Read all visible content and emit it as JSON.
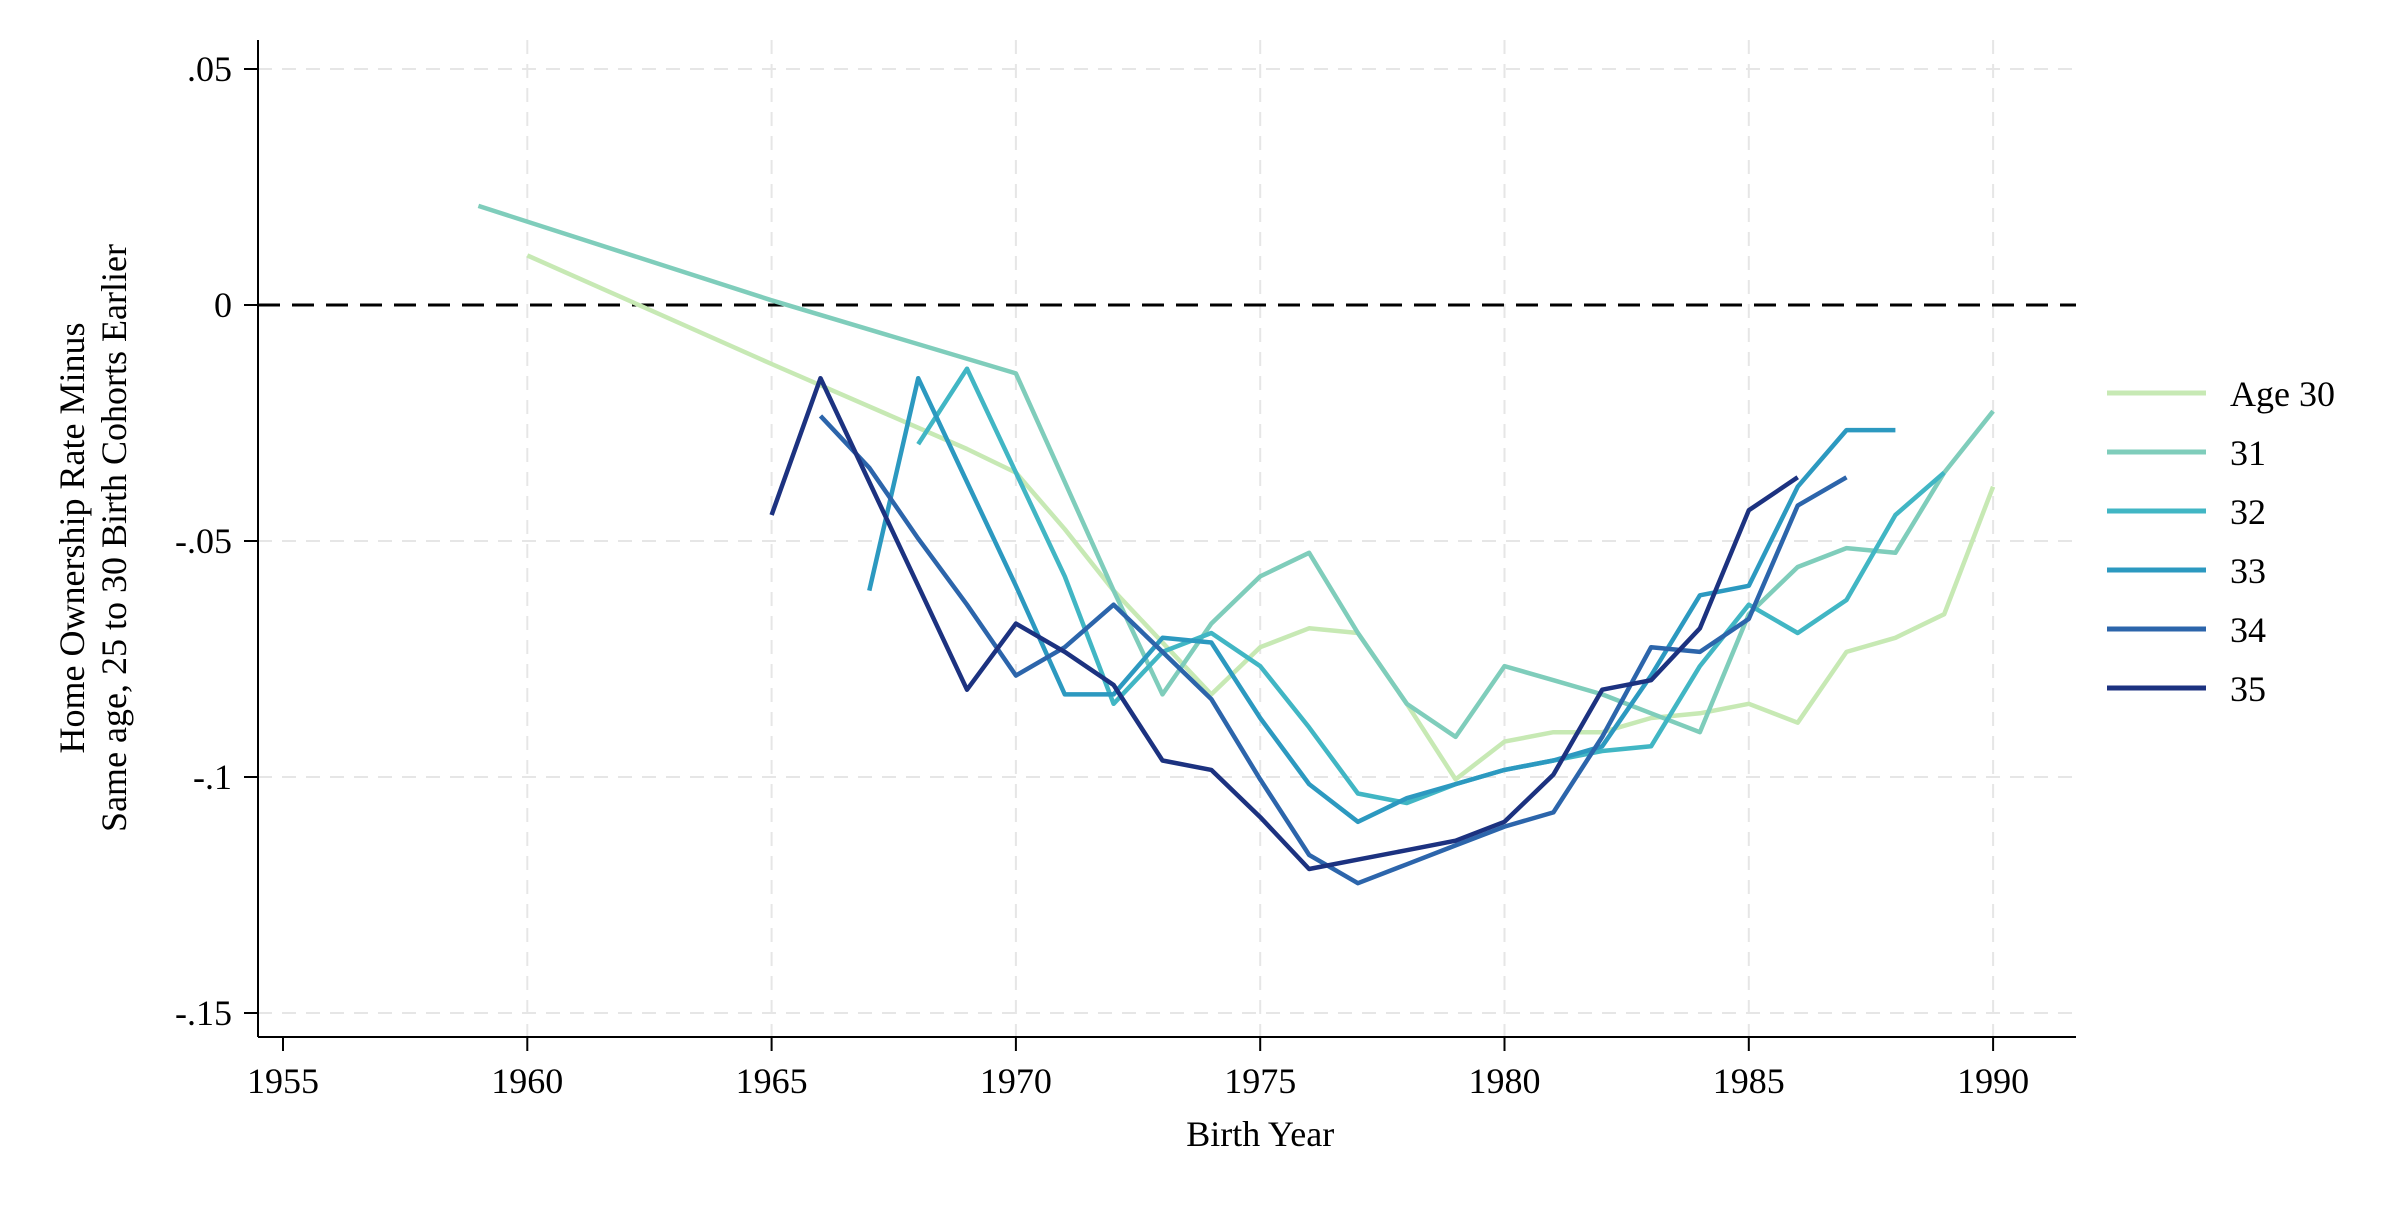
{
  "chart_data": {
    "type": "line",
    "title": "",
    "xlabel": "Birth Year",
    "ylabel_lines": [
      "Home Ownership Rate Minus",
      "Same age, 25 to 30 Birth Cohorts Earlier"
    ],
    "xlim": [
      1955,
      1990
    ],
    "ylim": [
      -0.15,
      0.05
    ],
    "xticks": [
      1955,
      1960,
      1965,
      1970,
      1975,
      1980,
      1985,
      1990
    ],
    "xtick_labels": [
      "1955",
      "1960",
      "1965",
      "1970",
      "1975",
      "1980",
      "1985",
      "1990"
    ],
    "yticks": [
      0.05,
      0,
      -0.05,
      -0.1,
      -0.15
    ],
    "ytick_labels": [
      ".05",
      "0",
      "-.05",
      "-.1",
      "-.15"
    ],
    "grid": true,
    "reference_line": {
      "y": 0,
      "style": "dashed",
      "color": "#000000"
    },
    "legend": {
      "position": "right"
    },
    "series": [
      {
        "name": "Age 30",
        "color": "#c7e9b4",
        "x": [
          1960,
          1965,
          1969,
          1970,
          1971,
          1972,
          1973,
          1974,
          1975,
          1976,
          1977,
          1978,
          1979,
          1980,
          1981,
          1982,
          1983,
          1984,
          1985,
          1986,
          1987,
          1988,
          1989,
          1990
        ],
        "y": [
          0.0105,
          -0.0125,
          -0.0305,
          -0.0355,
          -0.0475,
          -0.0605,
          -0.0715,
          -0.0825,
          -0.0725,
          -0.0685,
          -0.0695,
          -0.0845,
          -0.1005,
          -0.0925,
          -0.0905,
          -0.0905,
          -0.0875,
          -0.0865,
          -0.0845,
          -0.0885,
          -0.0735,
          -0.0705,
          -0.0655,
          -0.0385
        ]
      },
      {
        "name": "31",
        "color": "#7fcdbb",
        "x": [
          1959,
          1965,
          1970,
          1971,
          1972,
          1973,
          1974,
          1975,
          1976,
          1977,
          1978,
          1979,
          1980,
          1981,
          1982,
          1983,
          1984,
          1985,
          1986,
          1987,
          1988,
          1989,
          1990
        ],
        "y": [
          0.021,
          0.001,
          -0.0145,
          -0.0375,
          -0.0605,
          -0.0825,
          -0.0675,
          -0.0575,
          -0.0525,
          -0.0695,
          -0.0845,
          -0.0915,
          -0.0765,
          -0.0795,
          -0.0825,
          -0.0865,
          -0.0905,
          -0.0655,
          -0.0555,
          -0.0515,
          -0.0525,
          -0.0355,
          -0.0225
        ]
      },
      {
        "name": "32",
        "color": "#41b6c4",
        "x": [
          1968,
          1969,
          1970,
          1971,
          1972,
          1973,
          1974,
          1975,
          1976,
          1977,
          1978,
          1979,
          1980,
          1981,
          1982,
          1983,
          1984,
          1985,
          1986,
          1987,
          1988,
          1989
        ],
        "y": [
          -0.0295,
          -0.0135,
          -0.0355,
          -0.0575,
          -0.0845,
          -0.0735,
          -0.0695,
          -0.0765,
          -0.0895,
          -0.1035,
          -0.1055,
          -0.1015,
          -0.0985,
          -0.0965,
          -0.0945,
          -0.0935,
          -0.0765,
          -0.0635,
          -0.0695,
          -0.0625,
          -0.0445,
          -0.0355
        ]
      },
      {
        "name": "33",
        "color": "#2c99c0",
        "x": [
          1967,
          1968,
          1969,
          1970,
          1971,
          1972,
          1973,
          1974,
          1975,
          1976,
          1977,
          1978,
          1979,
          1980,
          1981,
          1982,
          1983,
          1984,
          1985,
          1986,
          1987,
          1988
        ],
        "y": [
          -0.0605,
          -0.0155,
          -0.0375,
          -0.0595,
          -0.0825,
          -0.0825,
          -0.0705,
          -0.0715,
          -0.0875,
          -0.1015,
          -0.1095,
          -0.1045,
          -0.1015,
          -0.0985,
          -0.0965,
          -0.0935,
          -0.0785,
          -0.0615,
          -0.0595,
          -0.0385,
          -0.0265,
          -0.0265
        ]
      },
      {
        "name": "34",
        "color": "#2c65ab",
        "x": [
          1966,
          1967,
          1968,
          1969,
          1970,
          1971,
          1972,
          1973,
          1974,
          1975,
          1976,
          1977,
          1978,
          1979,
          1980,
          1981,
          1982,
          1983,
          1984,
          1985,
          1986,
          1987
        ],
        "y": [
          -0.0235,
          -0.0345,
          -0.0495,
          -0.0635,
          -0.0785,
          -0.0725,
          -0.0635,
          -0.0735,
          -0.0835,
          -0.1005,
          -0.1165,
          -0.1225,
          -0.1185,
          -0.1145,
          -0.1105,
          -0.1075,
          -0.0915,
          -0.0725,
          -0.0735,
          -0.0665,
          -0.0425,
          -0.0365
        ]
      },
      {
        "name": "35",
        "color": "#1c3280",
        "x": [
          1965,
          1966,
          1967,
          1968,
          1969,
          1970,
          1971,
          1972,
          1973,
          1974,
          1975,
          1976,
          1977,
          1978,
          1979,
          1980,
          1981,
          1982,
          1983,
          1984,
          1985,
          1986
        ],
        "y": [
          -0.0445,
          -0.0155,
          -0.0375,
          -0.0595,
          -0.0815,
          -0.0675,
          -0.0735,
          -0.0805,
          -0.0965,
          -0.0985,
          -0.1085,
          -0.1195,
          -0.1175,
          -0.1155,
          -0.1135,
          -0.1095,
          -0.0995,
          -0.0815,
          -0.0795,
          -0.0685,
          -0.0435,
          -0.0365
        ]
      }
    ]
  }
}
